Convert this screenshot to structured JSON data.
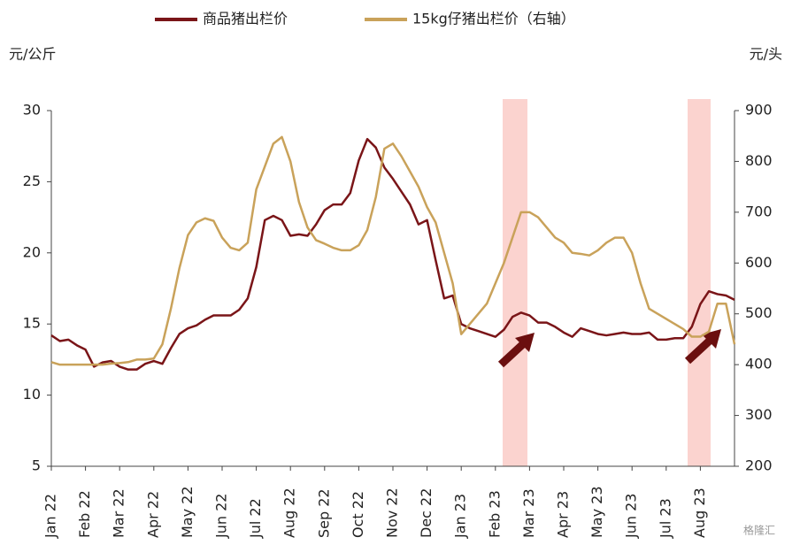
{
  "chart_data": {
    "type": "line",
    "y_label": "元/公斤",
    "y2_label": "元/头",
    "categories": [
      "Jan 22",
      null,
      null,
      null,
      "Feb 22",
      null,
      null,
      null,
      "Mar 22",
      null,
      null,
      null,
      "Apr 22",
      null,
      null,
      null,
      "May 22",
      null,
      null,
      null,
      "Jun 22",
      null,
      null,
      null,
      "Jul 22",
      null,
      null,
      null,
      "Aug 22",
      null,
      null,
      null,
      "Sep 22",
      null,
      null,
      null,
      "Oct 22",
      null,
      null,
      null,
      "Nov 22",
      null,
      null,
      null,
      "Dec 22",
      null,
      null,
      null,
      "Jan 23",
      null,
      null,
      null,
      "Feb 23",
      null,
      null,
      null,
      "Mar 23",
      null,
      null,
      null,
      "Apr 23",
      null,
      null,
      null,
      "May 23",
      null,
      null,
      null,
      "Jun 23",
      null,
      null,
      null,
      "Jul 23",
      null,
      null,
      null,
      "Aug 23",
      null,
      null,
      null,
      null
    ],
    "series": [
      {
        "name": "商品猪出栏价",
        "color": "#7a1518",
        "values": [
          14.2,
          13.8,
          13.9,
          13.5,
          13.2,
          12.0,
          12.3,
          12.4,
          12.0,
          11.8,
          11.8,
          12.2,
          12.4,
          12.2,
          13.3,
          14.3,
          14.7,
          14.9,
          15.3,
          15.6,
          15.6,
          15.6,
          16.0,
          16.8,
          19.0,
          22.3,
          22.6,
          22.3,
          21.2,
          21.3,
          21.2,
          22.0,
          23.0,
          23.4,
          23.4,
          24.2,
          26.5,
          28.0,
          27.4,
          26.0,
          25.2,
          24.3,
          23.4,
          22.0,
          22.3,
          19.5,
          16.8,
          17.0,
          15.0,
          14.7,
          14.5,
          14.3,
          14.1,
          14.6,
          15.5,
          15.8,
          15.6,
          15.1,
          15.1,
          14.8,
          14.4,
          14.1,
          14.7,
          14.5,
          14.3,
          14.2,
          14.3,
          14.4,
          14.3,
          14.3,
          14.4,
          13.9,
          13.9,
          14.0,
          14.0,
          14.8,
          16.4,
          17.3,
          17.1,
          17.0,
          16.7
        ]
      },
      {
        "name": "15kg仔猪出栏价（右轴）",
        "color": "#c9a25a",
        "axis": "y2",
        "values": [
          405,
          400,
          400,
          400,
          400,
          400,
          400,
          402,
          403,
          405,
          410,
          410,
          412,
          440,
          510,
          590,
          655,
          680,
          688,
          683,
          650,
          630,
          625,
          640,
          745,
          790,
          835,
          848,
          800,
          720,
          670,
          645,
          638,
          630,
          625,
          625,
          635,
          665,
          730,
          825,
          835,
          810,
          780,
          750,
          710,
          680,
          620,
          560,
          460,
          480,
          500,
          520,
          560,
          600,
          650,
          700,
          700,
          690,
          670,
          650,
          640,
          620,
          618,
          615,
          625,
          640,
          650,
          650,
          620,
          560,
          510,
          500,
          490,
          480,
          470,
          455,
          455,
          465,
          520,
          520,
          440
        ]
      }
    ],
    "ylim": [
      5,
      30
    ],
    "yticks": [
      5,
      10,
      15,
      20,
      25,
      30
    ],
    "y2lim": [
      200,
      900
    ],
    "y2ticks": [
      200,
      300,
      400,
      500,
      600,
      700,
      800,
      900
    ],
    "legend": "top",
    "watermark": "格隆汇"
  }
}
